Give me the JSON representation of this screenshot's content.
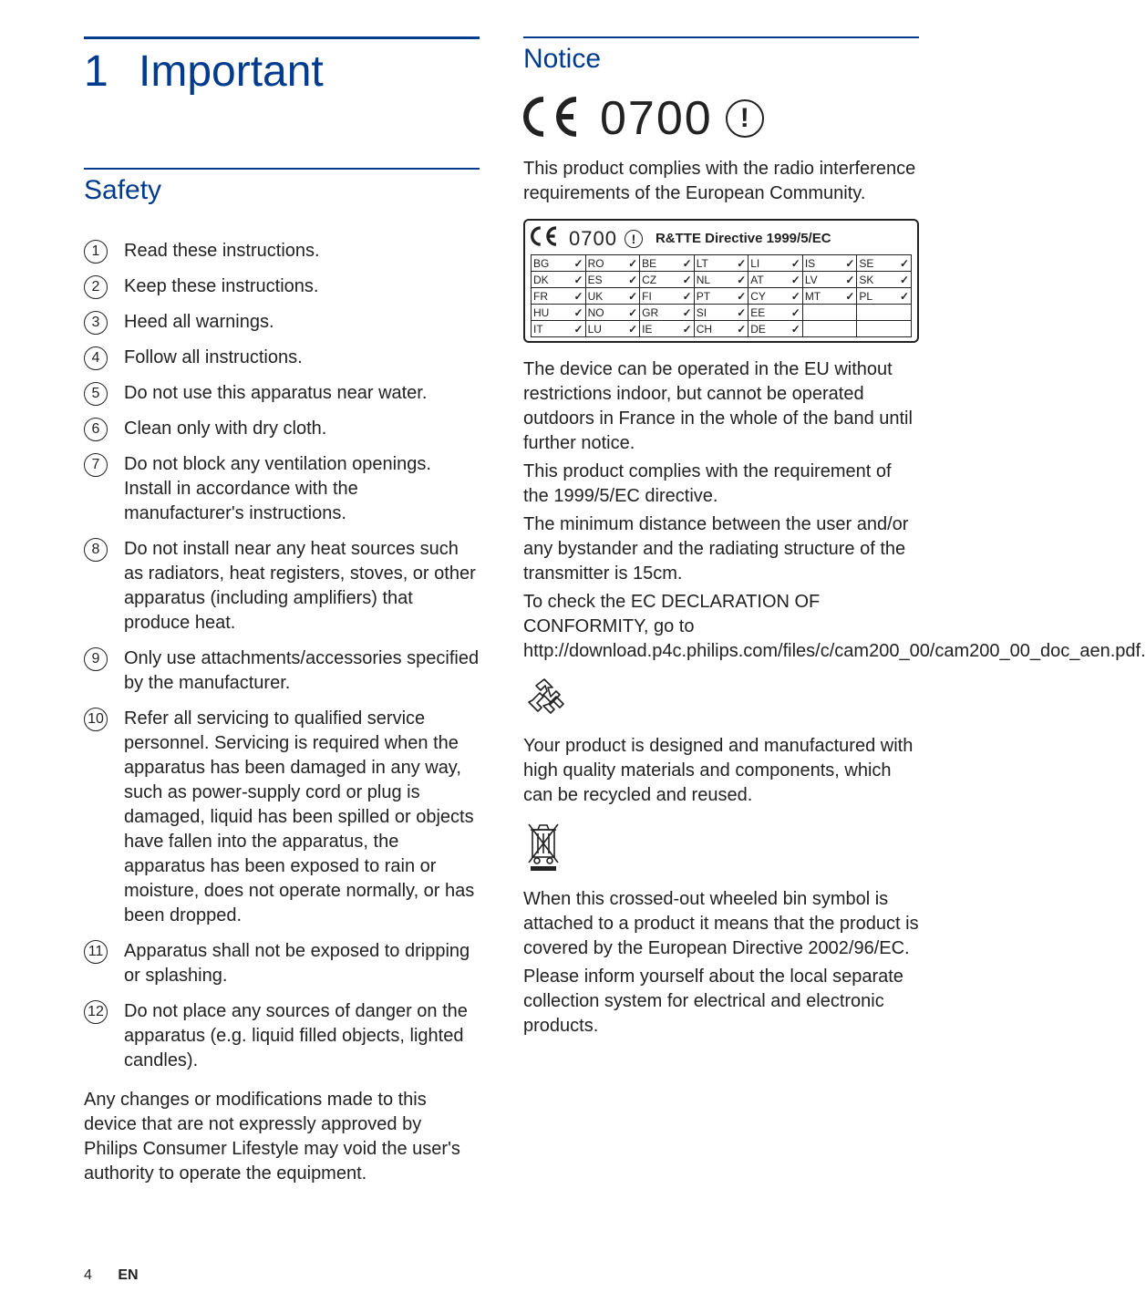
{
  "colors": {
    "accent": "#003b8e",
    "text": "#222222",
    "background": "#ffffff",
    "border": "#222222"
  },
  "chapter": {
    "number": "1",
    "title": "Important"
  },
  "left": {
    "safety_heading": "Safety",
    "items": [
      "Read these instructions.",
      "Keep these instructions.",
      "Heed all warnings.",
      "Follow all instructions.",
      "Do not use this apparatus near water.",
      "Clean only with dry cloth.",
      "Do not block any ventilation openings. Install in accordance with the manufacturer's instructions.",
      "Do not install near any heat sources such as radiators, heat registers, stoves, or other apparatus (including amplifiers) that produce heat.",
      "Only use attachments/accessories specified by the manufacturer.",
      "Refer all servicing to qualified service personnel. Servicing is required when the apparatus has been damaged in any way, such as power-supply cord or plug is damaged, liquid has been spilled or objects have fallen into the apparatus, the apparatus has been exposed to rain or moisture, does not operate normally, or has been dropped.",
      "Apparatus shall not be exposed to dripping or splashing.",
      "Do not place any sources of danger on the apparatus (e.g. liquid filled objects, lighted candles)."
    ],
    "footnote": "Any changes or modifications made to this device that are not expressly approved by Philips Consumer Lifestyle may void the user's authority to operate the equipment."
  },
  "right": {
    "notice_heading": "Notice",
    "ce": {
      "mark": "CE",
      "number": "0700",
      "alert": "!"
    },
    "compliance_intro": "This product complies with the radio interference requirements of the European Community.",
    "directive_box": {
      "title": "R&TTE Directive 1999/5/EC",
      "rows": [
        [
          "BG",
          "RO",
          "BE",
          "LT",
          "LI",
          "IS",
          "SE"
        ],
        [
          "DK",
          "ES",
          "CZ",
          "NL",
          "AT",
          "LV",
          "SK"
        ],
        [
          "FR",
          "UK",
          "FI",
          "PT",
          "CY",
          "MT",
          "PL"
        ],
        [
          "HU",
          "NO",
          "GR",
          "SI",
          "EE",
          "",
          ""
        ],
        [
          "IT",
          "LU",
          "IE",
          "CH",
          "DE",
          "",
          ""
        ]
      ],
      "check_glyph": "✓"
    },
    "eu_note": "The device can be operated in the EU without restrictions indoor, but cannot be operated outdoors in France in the whole of the band until further notice.",
    "directive_note": "This product complies with the requirement of the 1999/5/EC directive.",
    "distance_note": "The minimum distance between the user and/or any bystander and the radiating structure of the transmitter is 15cm.",
    "doc_note": "To check the EC DECLARATION OF CONFORMITY, go to http://download.p4c.philips.com/files/c/cam200_00/cam200_00_doc_aen.pdf.",
    "recycle_note": "Your product is designed and manufactured with high quality materials and components, which can be recycled and reused.",
    "weee_note": "When this crossed-out wheeled bin symbol is attached to a product it means that the product is covered by the European Directive 2002/96/EC.",
    "weee_note2": "Please inform yourself about the local separate collection system for electrical and electronic products."
  },
  "footer": {
    "page": "4",
    "lang": "EN"
  }
}
